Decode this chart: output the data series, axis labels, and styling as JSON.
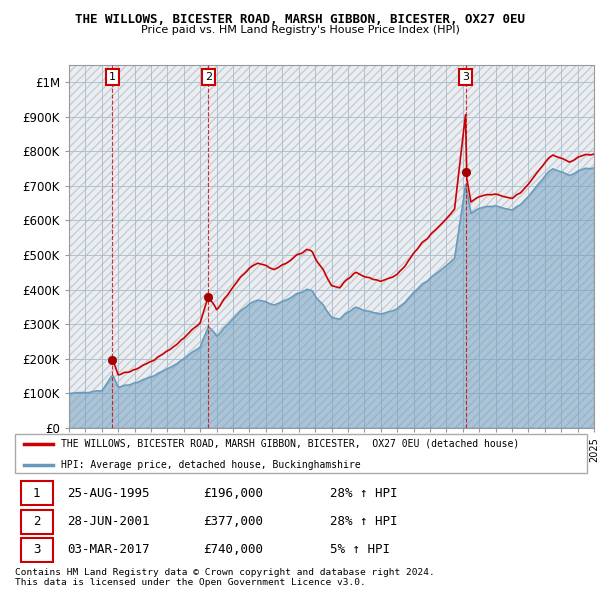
{
  "title1": "THE WILLOWS, BICESTER ROAD, MARSH GIBBON, BICESTER, OX27 0EU",
  "title2": "Price paid vs. HM Land Registry's House Price Index (HPI)",
  "ylim": [
    0,
    1050000
  ],
  "yticks": [
    0,
    100000,
    200000,
    300000,
    400000,
    500000,
    600000,
    700000,
    800000,
    900000,
    1000000
  ],
  "ytick_labels": [
    "£0",
    "£100K",
    "£200K",
    "£300K",
    "£400K",
    "£500K",
    "£600K",
    "£700K",
    "£800K",
    "£900K",
    "£1M"
  ],
  "sale_dates_float": [
    1995.646,
    2001.496,
    2017.169
  ],
  "sale_prices": [
    196000,
    377000,
    740000
  ],
  "sale_labels": [
    "1",
    "2",
    "3"
  ],
  "red_line_color": "#cc0000",
  "blue_line_color": "#6699bb",
  "marker_color": "#aa0000",
  "grid_color": "#aabbcc",
  "legend_label_red": "THE WILLOWS, BICESTER ROAD, MARSH GIBBON, BICESTER,  OX27 0EU (detached house)",
  "legend_label_blue": "HPI: Average price, detached house, Buckinghamshire",
  "table_data": [
    [
      "1",
      "25-AUG-1995",
      "£196,000",
      "28% ↑ HPI"
    ],
    [
      "2",
      "28-JUN-2001",
      "£377,000",
      "28% ↑ HPI"
    ],
    [
      "3",
      "03-MAR-2017",
      "£740,000",
      "5% ↑ HPI"
    ]
  ],
  "footnote1": "Contains HM Land Registry data © Crown copyright and database right 2024.",
  "footnote2": "This data is licensed under the Open Government Licence v3.0."
}
